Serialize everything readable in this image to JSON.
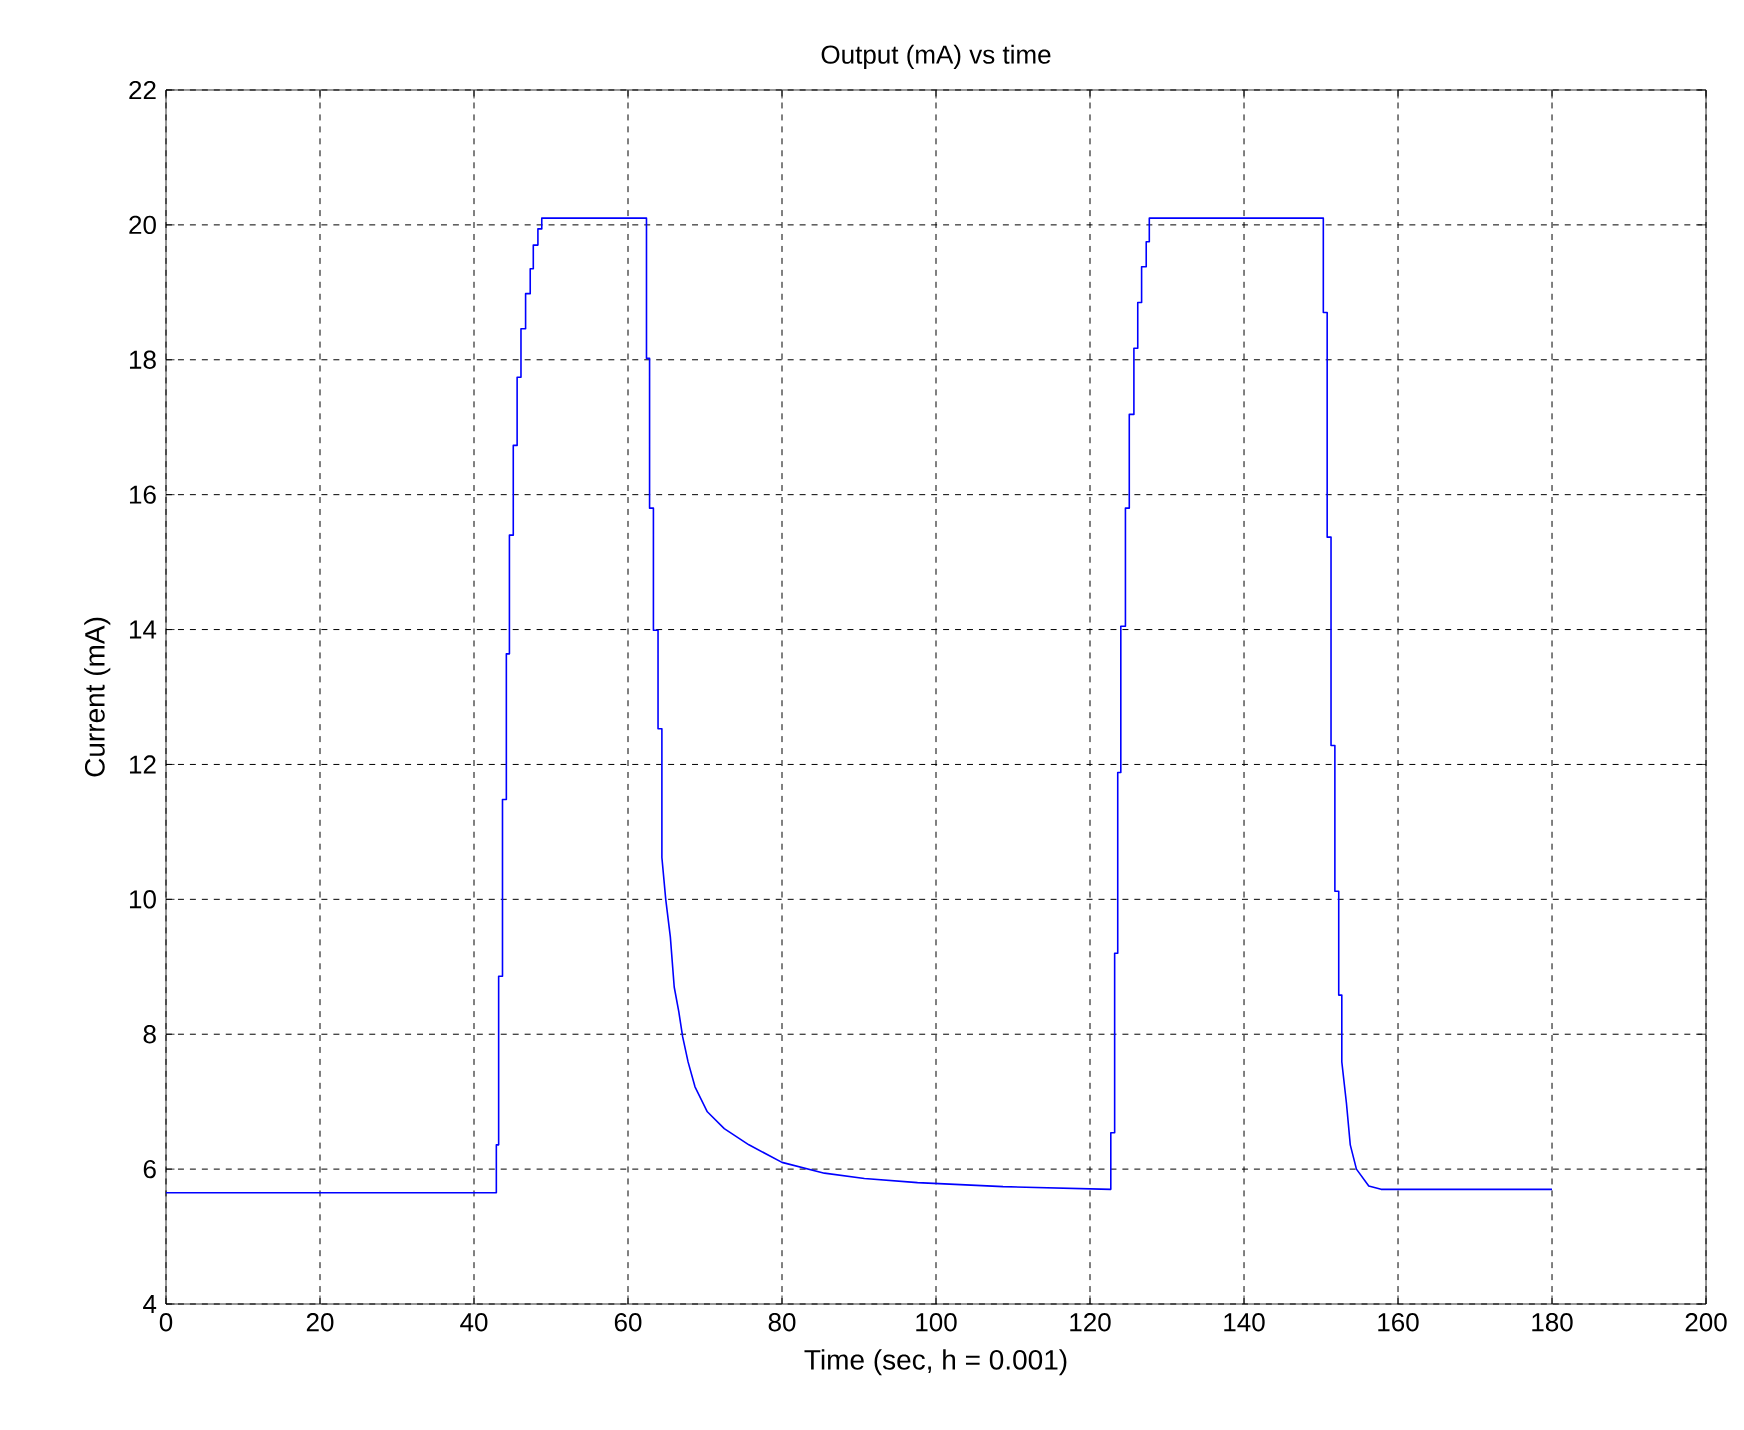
{
  "chart_data": {
    "type": "line",
    "title": "Output (mA) vs time",
    "xlabel": "Time (sec, h = 0.001)",
    "ylabel": "Current (mA)",
    "xlim": [
      0,
      200
    ],
    "ylim": [
      4,
      22
    ],
    "xticks": [
      0,
      20,
      40,
      60,
      80,
      100,
      120,
      140,
      160,
      180,
      200
    ],
    "yticks": [
      4,
      6,
      8,
      10,
      12,
      14,
      16,
      18,
      20,
      22
    ],
    "grid": true,
    "line_style": "solid",
    "marker": "none",
    "series": [
      {
        "color": "#0000ff",
        "x": [
          0,
          42.9,
          42.9,
          43.2,
          43.2,
          43.7,
          43.7,
          44.2,
          44.2,
          44.6,
          44.6,
          45.1,
          45.1,
          45.6,
          45.6,
          46.1,
          46.1,
          46.7,
          46.7,
          47.3,
          47.3,
          47.7,
          47.7,
          48.3,
          48.3,
          48.8,
          48.8,
          61.9,
          62.4,
          62.4,
          62.8,
          62.8,
          63.3,
          63.3,
          63.9,
          63.9,
          64.4,
          64.4,
          64.9,
          65.5,
          66.0,
          66.6,
          67.1,
          67.8,
          68.7,
          70.3,
          72.5,
          75.7,
          80,
          85.5,
          90.7,
          97.6,
          108.7,
          122.7,
          122.7,
          123.2,
          123.2,
          123.6,
          123.6,
          124.0,
          124.0,
          124.6,
          124.6,
          125.1,
          125.1,
          125.7,
          125.7,
          126.2,
          126.2,
          126.7,
          126.7,
          127.3,
          127.3,
          127.7,
          127.7,
          150.0,
          150.3,
          150.3,
          150.8,
          150.8,
          151.3,
          151.3,
          151.8,
          151.8,
          152.3,
          152.3,
          152.7,
          152.7,
          153.3,
          153.8,
          154.6,
          156.2,
          157.8,
          180
        ],
        "values": [
          5.65,
          5.65,
          6.36,
          6.36,
          8.86,
          8.86,
          11.48,
          11.48,
          13.64,
          13.64,
          15.4,
          15.4,
          16.73,
          16.73,
          17.74,
          17.74,
          18.46,
          18.46,
          18.98,
          18.98,
          19.35,
          19.35,
          19.7,
          19.7,
          19.94,
          19.94,
          20.1,
          20.1,
          20.1,
          18.02,
          18.02,
          15.8,
          15.8,
          13.99,
          13.99,
          12.53,
          12.53,
          10.62,
          10.0,
          9.44,
          8.7,
          8.33,
          7.96,
          7.59,
          7.22,
          6.85,
          6.6,
          6.36,
          6.1,
          5.94,
          5.86,
          5.8,
          5.74,
          5.7,
          6.54,
          6.54,
          9.2,
          9.2,
          11.88,
          11.88,
          14.05,
          14.05,
          15.8,
          15.8,
          17.19,
          17.19,
          18.17,
          18.17,
          18.85,
          18.85,
          19.38,
          19.38,
          19.75,
          19.75,
          20.1,
          20.1,
          20.1,
          18.7,
          18.7,
          15.37,
          15.37,
          12.28,
          12.28,
          10.12,
          10.12,
          8.58,
          8.58,
          7.59,
          6.98,
          6.36,
          6.0,
          5.75,
          5.7,
          5.7
        ]
      }
    ]
  }
}
